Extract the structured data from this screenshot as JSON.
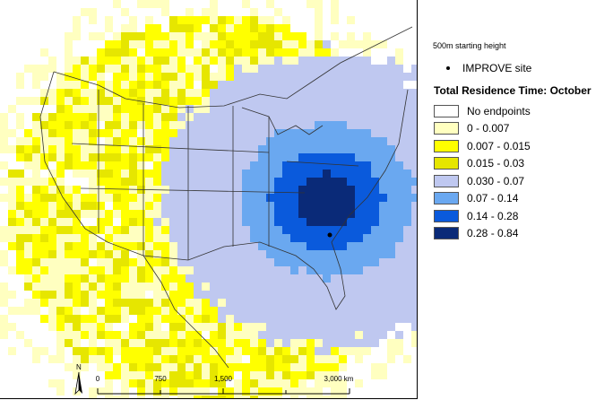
{
  "legend": {
    "height_label": "500m starting height",
    "site_label": "IMPROVE site",
    "title": "Total Residence Time: October",
    "items": [
      {
        "label": "No endpoints",
        "color": "#ffffff"
      },
      {
        "label": "0 - 0.007",
        "color": "#ffffc0"
      },
      {
        "label": "0.007 - 0.015",
        "color": "#ffff00"
      },
      {
        "label": "0.015 - 0.03",
        "color": "#e6e600"
      },
      {
        "label": "0.030 - 0.07",
        "color": "#bfc8f0"
      },
      {
        "label": "0.07 - 0.14",
        "color": "#6aa8f0"
      },
      {
        "label": "0.14 - 0.28",
        "color": "#0a5adc"
      },
      {
        "label": "0.28 - 0.84",
        "color": "#0a2a78"
      }
    ]
  },
  "north_arrow": {
    "label": "N"
  },
  "scale": {
    "ticks": [
      "0",
      "750",
      "1,500",
      "3,000 km"
    ],
    "tick_km": [
      0,
      750,
      1500,
      3000
    ],
    "max_km": 3000
  },
  "site": {
    "name": "IMPROVE site"
  }
}
